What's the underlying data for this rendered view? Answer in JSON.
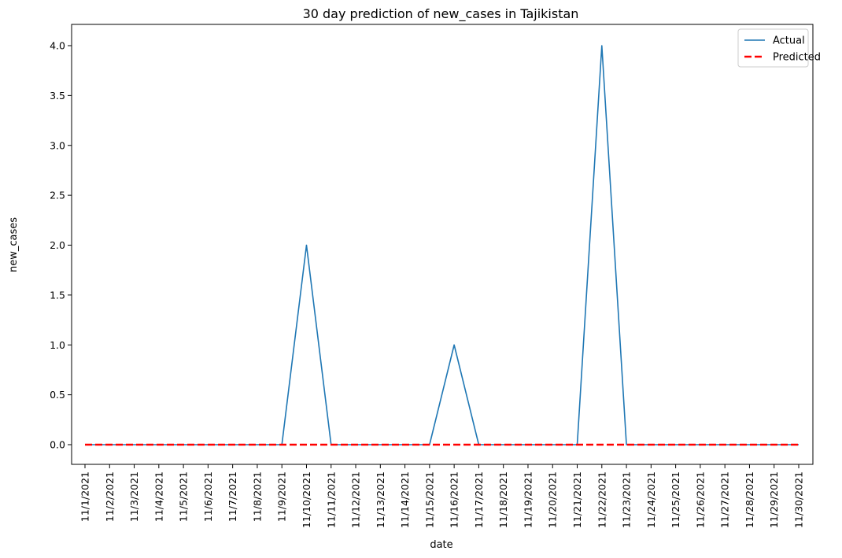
{
  "chart_data": {
    "type": "line",
    "title": "30 day prediction of new_cases in Tajikistan",
    "xlabel": "date",
    "ylabel": "new_cases",
    "x": [
      "11/1/2021",
      "11/2/2021",
      "11/3/2021",
      "11/4/2021",
      "11/5/2021",
      "11/6/2021",
      "11/7/2021",
      "11/8/2021",
      "11/9/2021",
      "11/10/2021",
      "11/11/2021",
      "11/12/2021",
      "11/13/2021",
      "11/14/2021",
      "11/15/2021",
      "11/16/2021",
      "11/17/2021",
      "11/18/2021",
      "11/19/2021",
      "11/20/2021",
      "11/21/2021",
      "11/22/2021",
      "11/23/2021",
      "11/24/2021",
      "11/25/2021",
      "11/26/2021",
      "11/27/2021",
      "11/28/2021",
      "11/29/2021",
      "11/30/2021"
    ],
    "series": [
      {
        "name": "Actual",
        "color": "#1f77b4",
        "style": "solid",
        "values": [
          0,
          0,
          0,
          0,
          0,
          0,
          0,
          0,
          0,
          2,
          0,
          0,
          0,
          0,
          0,
          1,
          0,
          0,
          0,
          0,
          0,
          4,
          0,
          0,
          0,
          0,
          0,
          0,
          0,
          0
        ]
      },
      {
        "name": "Predicted",
        "color": "#ff0000",
        "style": "dashed",
        "values": [
          0,
          0,
          0,
          0,
          0,
          0,
          0,
          0,
          0,
          0,
          0,
          0,
          0,
          0,
          0,
          0,
          0,
          0,
          0,
          0,
          0,
          0,
          0,
          0,
          0,
          0,
          0,
          0,
          0,
          0
        ]
      }
    ],
    "yticks": [
      "0.0",
      "0.5",
      "1.0",
      "1.5",
      "2.0",
      "2.5",
      "3.0",
      "3.5",
      "4.0"
    ],
    "ylim": [
      -0.2,
      4.2
    ],
    "grid": false,
    "legend_position": "top-right"
  }
}
